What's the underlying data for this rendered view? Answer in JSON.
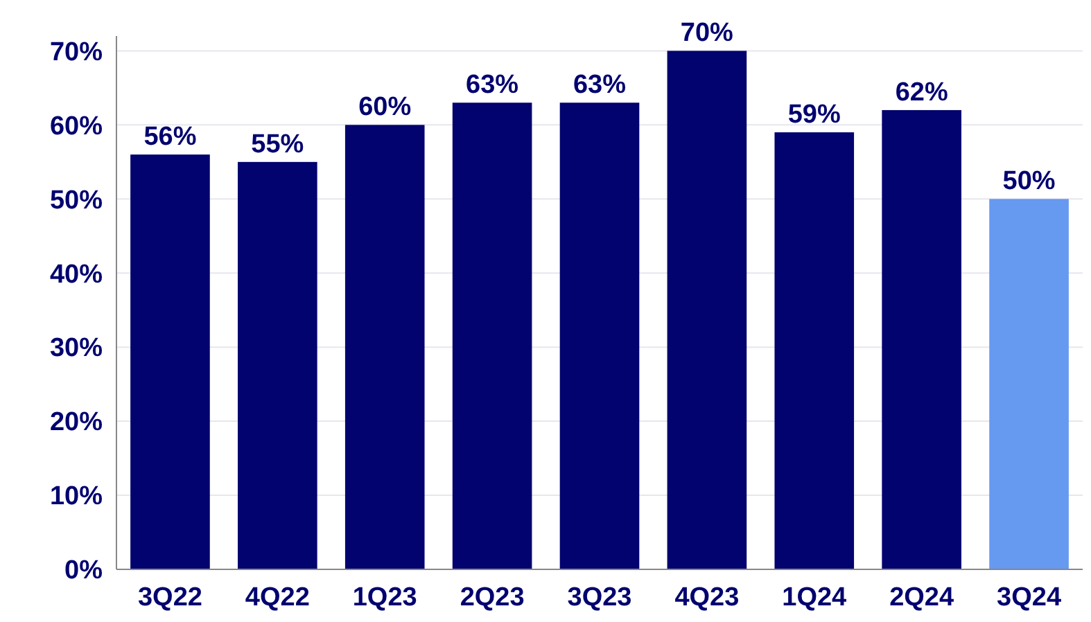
{
  "chart_data": {
    "type": "bar",
    "categories": [
      "3Q22",
      "4Q22",
      "1Q23",
      "2Q23",
      "3Q23",
      "4Q23",
      "1Q24",
      "2Q24",
      "3Q24"
    ],
    "values": [
      56,
      55,
      60,
      63,
      63,
      70,
      59,
      62,
      50
    ],
    "colors": [
      "#02036f",
      "#02036f",
      "#02036f",
      "#02036f",
      "#02036f",
      "#02036f",
      "#02036f",
      "#02036f",
      "#6699f0"
    ],
    "ylim": [
      0,
      72
    ],
    "yticks": [
      {
        "value": 0,
        "label": "0%"
      },
      {
        "value": 10,
        "label": "10%"
      },
      {
        "value": 20,
        "label": "20%"
      },
      {
        "value": 30,
        "label": "30%"
      },
      {
        "value": 40,
        "label": "40%"
      },
      {
        "value": 50,
        "label": "50%"
      },
      {
        "value": 60,
        "label": "60%"
      },
      {
        "value": 70,
        "label": "70%"
      }
    ],
    "value_labels": [
      "56%",
      "55%",
      "60%",
      "63%",
      "63%",
      "70%",
      "59%",
      "62%",
      "50%"
    ],
    "grid": "y"
  }
}
